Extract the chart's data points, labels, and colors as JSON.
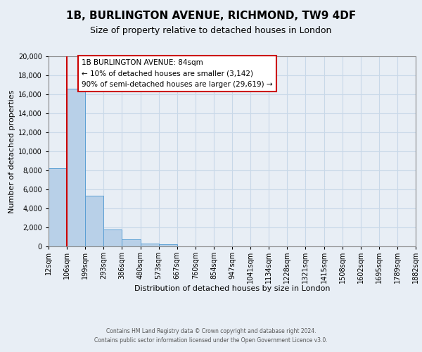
{
  "title": "1B, BURLINGTON AVENUE, RICHMOND, TW9 4DF",
  "subtitle": "Size of property relative to detached houses in London",
  "xlabel": "Distribution of detached houses by size in London",
  "ylabel": "Number of detached properties",
  "bin_labels": [
    "12sqm",
    "106sqm",
    "199sqm",
    "293sqm",
    "386sqm",
    "480sqm",
    "573sqm",
    "667sqm",
    "760sqm",
    "854sqm",
    "947sqm",
    "1041sqm",
    "1134sqm",
    "1228sqm",
    "1321sqm",
    "1415sqm",
    "1508sqm",
    "1602sqm",
    "1695sqm",
    "1789sqm",
    "1882sqm"
  ],
  "bar_values": [
    8200,
    16600,
    5300,
    1800,
    750,
    300,
    220,
    0,
    0,
    0,
    0,
    0,
    0,
    0,
    0,
    0,
    0,
    0,
    0,
    0
  ],
  "bar_color": "#b8d0e8",
  "bar_edge_color": "#5a9fd4",
  "ylim": [
    0,
    20000
  ],
  "yticks": [
    0,
    2000,
    4000,
    6000,
    8000,
    10000,
    12000,
    14000,
    16000,
    18000,
    20000
  ],
  "property_line_x": 1.0,
  "property_line_color": "#cc0000",
  "annotation_title": "1B BURLINGTON AVENUE: 84sqm",
  "annotation_line1": "← 10% of detached houses are smaller (3,142)",
  "annotation_line2": "90% of semi-detached houses are larger (29,619) →",
  "annotation_box_color": "#ffffff",
  "annotation_box_edge_color": "#cc0000",
  "footer_line1": "Contains HM Land Registry data © Crown copyright and database right 2024.",
  "footer_line2": "Contains public sector information licensed under the Open Government Licence v3.0.",
  "grid_color": "#c8d8e8",
  "background_color": "#e8eef5",
  "title_fontsize": 11,
  "subtitle_fontsize": 9,
  "axis_label_fontsize": 8,
  "tick_fontsize": 7,
  "annotation_fontsize": 7.5,
  "footer_fontsize": 5.5
}
